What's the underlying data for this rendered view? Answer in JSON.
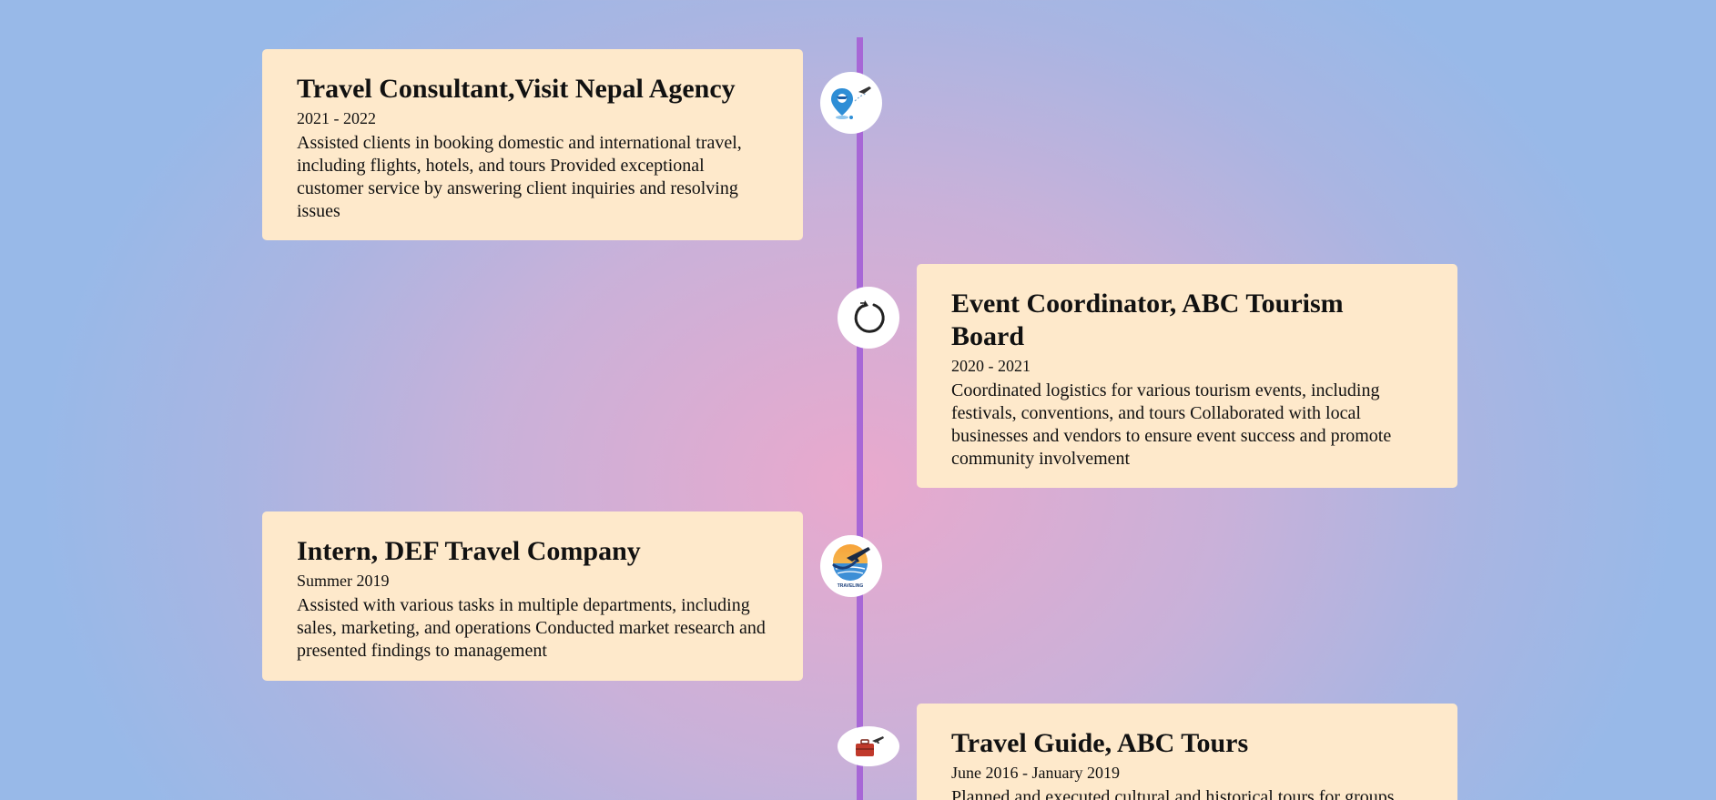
{
  "timeline": {
    "entries": [
      {
        "title": "Travel Consultant,Visit Nepal Agency",
        "date": "2021 - 2022",
        "description": "Assisted clients in booking domestic and international travel, including flights, hotels, and tours Provided exceptional customer service by answering client inquiries and resolving issues",
        "side": "left",
        "icon": "travel-pin-plane-icon"
      },
      {
        "title": "Event Coordinator, ABC Tourism Board",
        "date": "2020 - 2021",
        "description": "Coordinated logistics for various tourism events, including festivals, conventions, and tours Collaborated with local businesses and vendors to ensure event success and promote community involvement",
        "side": "right",
        "icon": "circular-flight-icon"
      },
      {
        "title": "Intern, DEF Travel Company",
        "date": "Summer 2019",
        "description": "Assisted with various tasks in multiple departments, including sales, marketing, and operations Conducted market research and presented findings to management",
        "side": "left",
        "icon": "traveling-logo-icon",
        "icon_caption": "TRAVELING"
      },
      {
        "title": "Travel Guide, ABC Tours",
        "date": "June 2016 - January 2019",
        "description": "Planned and executed cultural and historical tours for groups",
        "side": "right",
        "icon": "suitcase-plane-icon"
      }
    ]
  },
  "colors": {
    "axis": "#a767d6",
    "card_background": "#fee9cb",
    "node_background": "#ffffff",
    "background_center": "#e9a9cd",
    "background_edge": "#98b9e8"
  }
}
